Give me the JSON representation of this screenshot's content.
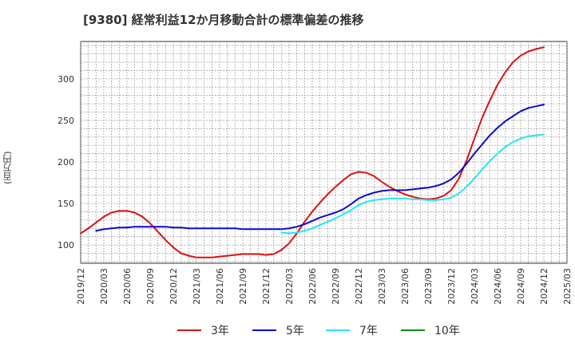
{
  "chart_data": {
    "type": "line",
    "title": "[9380]  経常利益12か月移動合計の標準偏差の推移",
    "ylabel": "(百万円)",
    "xlabel": "",
    "ylim": [
      78,
      345
    ],
    "yticks": [
      100,
      150,
      200,
      250,
      300
    ],
    "xticks": [
      "2019/12",
      "2020/03",
      "2020/06",
      "2020/09",
      "2020/12",
      "2021/03",
      "2021/06",
      "2021/09",
      "2021/12",
      "2022/03",
      "2022/06",
      "2022/09",
      "2022/12",
      "2023/03",
      "2023/06",
      "2023/09",
      "2023/12",
      "2024/03",
      "2024/06",
      "2024/09",
      "2024/12",
      "2025/03"
    ],
    "grid": true,
    "legend_position": "bottom",
    "colors": {
      "3年": "#dd1111",
      "5年": "#0a0ad0",
      "7年": "#22e8f0",
      "10年": "#118811"
    },
    "series": [
      {
        "name": "3年",
        "points": [
          [
            "2019/12",
            114
          ],
          [
            "2020/01",
            120
          ],
          [
            "2020/02",
            127
          ],
          [
            "2020/03",
            134
          ],
          [
            "2020/04",
            139
          ],
          [
            "2020/05",
            141
          ],
          [
            "2020/06",
            141
          ],
          [
            "2020/07",
            139
          ],
          [
            "2020/08",
            134
          ],
          [
            "2020/09",
            126
          ],
          [
            "2020/10",
            116
          ],
          [
            "2020/11",
            106
          ],
          [
            "2020/12",
            97
          ],
          [
            "2021/01",
            90
          ],
          [
            "2021/02",
            87
          ],
          [
            "2021/03",
            85
          ],
          [
            "2021/04",
            85
          ],
          [
            "2021/05",
            85
          ],
          [
            "2021/06",
            86
          ],
          [
            "2021/07",
            87
          ],
          [
            "2021/08",
            88
          ],
          [
            "2021/09",
            89
          ],
          [
            "2021/10",
            89
          ],
          [
            "2021/11",
            89
          ],
          [
            "2021/12",
            88
          ],
          [
            "2022/01",
            89
          ],
          [
            "2022/02",
            94
          ],
          [
            "2022/03",
            102
          ],
          [
            "2022/04",
            114
          ],
          [
            "2022/05",
            128
          ],
          [
            "2022/06",
            140
          ],
          [
            "2022/07",
            151
          ],
          [
            "2022/08",
            161
          ],
          [
            "2022/09",
            170
          ],
          [
            "2022/10",
            178
          ],
          [
            "2022/11",
            185
          ],
          [
            "2022/12",
            188
          ],
          [
            "2023/01",
            187
          ],
          [
            "2023/02",
            183
          ],
          [
            "2023/03",
            176
          ],
          [
            "2023/04",
            170
          ],
          [
            "2023/05",
            165
          ],
          [
            "2023/06",
            161
          ],
          [
            "2023/07",
            158
          ],
          [
            "2023/08",
            156
          ],
          [
            "2023/09",
            155
          ],
          [
            "2023/10",
            156
          ],
          [
            "2023/11",
            159
          ],
          [
            "2023/12",
            166
          ],
          [
            "2024/01",
            180
          ],
          [
            "2024/02",
            202
          ],
          [
            "2024/03",
            228
          ],
          [
            "2024/04",
            253
          ],
          [
            "2024/05",
            274
          ],
          [
            "2024/06",
            293
          ],
          [
            "2024/07",
            308
          ],
          [
            "2024/08",
            320
          ],
          [
            "2024/09",
            328
          ],
          [
            "2024/10",
            333
          ],
          [
            "2024/11",
            336
          ],
          [
            "2024/12",
            338
          ]
        ]
      },
      {
        "name": "5年",
        "points": [
          [
            "2020/02",
            117
          ],
          [
            "2020/03",
            119
          ],
          [
            "2020/04",
            120
          ],
          [
            "2020/05",
            121
          ],
          [
            "2020/06",
            121
          ],
          [
            "2020/07",
            122
          ],
          [
            "2020/08",
            122
          ],
          [
            "2020/09",
            122
          ],
          [
            "2020/10",
            122
          ],
          [
            "2020/11",
            122
          ],
          [
            "2020/12",
            121
          ],
          [
            "2021/01",
            121
          ],
          [
            "2021/02",
            120
          ],
          [
            "2021/03",
            120
          ],
          [
            "2021/04",
            120
          ],
          [
            "2021/05",
            120
          ],
          [
            "2021/06",
            120
          ],
          [
            "2021/07",
            120
          ],
          [
            "2021/08",
            120
          ],
          [
            "2021/09",
            119
          ],
          [
            "2021/10",
            119
          ],
          [
            "2021/11",
            119
          ],
          [
            "2021/12",
            119
          ],
          [
            "2022/01",
            119
          ],
          [
            "2022/02",
            119
          ],
          [
            "2022/03",
            120
          ],
          [
            "2022/04",
            122
          ],
          [
            "2022/05",
            125
          ],
          [
            "2022/06",
            129
          ],
          [
            "2022/07",
            133
          ],
          [
            "2022/08",
            136
          ],
          [
            "2022/09",
            139
          ],
          [
            "2022/10",
            143
          ],
          [
            "2022/11",
            149
          ],
          [
            "2022/12",
            156
          ],
          [
            "2023/01",
            160
          ],
          [
            "2023/02",
            163
          ],
          [
            "2023/03",
            165
          ],
          [
            "2023/04",
            166
          ],
          [
            "2023/05",
            166
          ],
          [
            "2023/06",
            166
          ],
          [
            "2023/07",
            167
          ],
          [
            "2023/08",
            168
          ],
          [
            "2023/09",
            169
          ],
          [
            "2023/10",
            171
          ],
          [
            "2023/11",
            174
          ],
          [
            "2023/12",
            179
          ],
          [
            "2024/01",
            187
          ],
          [
            "2024/02",
            198
          ],
          [
            "2024/03",
            210
          ],
          [
            "2024/04",
            221
          ],
          [
            "2024/05",
            232
          ],
          [
            "2024/06",
            241
          ],
          [
            "2024/07",
            249
          ],
          [
            "2024/08",
            255
          ],
          [
            "2024/09",
            261
          ],
          [
            "2024/10",
            265
          ],
          [
            "2024/11",
            267
          ],
          [
            "2024/12",
            269
          ]
        ]
      },
      {
        "name": "7年",
        "points": [
          [
            "2022/02",
            115
          ],
          [
            "2022/03",
            114
          ],
          [
            "2022/04",
            115
          ],
          [
            "2022/05",
            117
          ],
          [
            "2022/06",
            120
          ],
          [
            "2022/07",
            124
          ],
          [
            "2022/08",
            128
          ],
          [
            "2022/09",
            132
          ],
          [
            "2022/10",
            137
          ],
          [
            "2022/11",
            142
          ],
          [
            "2022/12",
            148
          ],
          [
            "2023/01",
            152
          ],
          [
            "2023/02",
            154
          ],
          [
            "2023/03",
            155
          ],
          [
            "2023/04",
            156
          ],
          [
            "2023/05",
            156
          ],
          [
            "2023/06",
            156
          ],
          [
            "2023/07",
            155
          ],
          [
            "2023/08",
            155
          ],
          [
            "2023/09",
            154
          ],
          [
            "2023/10",
            154
          ],
          [
            "2023/11",
            155
          ],
          [
            "2023/12",
            157
          ],
          [
            "2024/01",
            162
          ],
          [
            "2024/02",
            170
          ],
          [
            "2024/03",
            180
          ],
          [
            "2024/04",
            191
          ],
          [
            "2024/05",
            201
          ],
          [
            "2024/06",
            210
          ],
          [
            "2024/07",
            218
          ],
          [
            "2024/08",
            224
          ],
          [
            "2024/09",
            228
          ],
          [
            "2024/10",
            231
          ],
          [
            "2024/11",
            232
          ],
          [
            "2024/12",
            233
          ]
        ]
      },
      {
        "name": "10年",
        "points": []
      }
    ]
  }
}
